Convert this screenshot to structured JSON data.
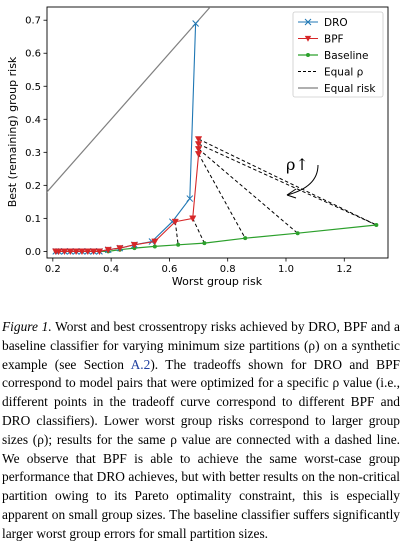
{
  "chart_data": {
    "type": "line",
    "xlabel": "Worst group risk",
    "ylabel": "Best (remaining) group risk",
    "xlim": [
      0.18,
      1.35
    ],
    "ylim": [
      -0.02,
      0.74
    ],
    "xticks": [
      "0.2",
      "0.4",
      "0.6",
      "0.8",
      "1.0",
      "1.2"
    ],
    "yticks": [
      "0.0",
      "0.1",
      "0.2",
      "0.3",
      "0.4",
      "0.5",
      "0.6",
      "0.7"
    ],
    "legend_position": "top-right",
    "legend": [
      "DRO",
      "BPF",
      "Baseline",
      "Equal ρ",
      "Equal risk"
    ],
    "annotation": "ρ↑",
    "colors": {
      "dro": "#1f77b4",
      "bpf": "#d62728",
      "baseline": "#2ca02c",
      "equal_rho": "#000000",
      "equal_risk": "#808080"
    },
    "series": [
      {
        "name": "DRO",
        "marker": "x",
        "points": [
          [
            0.21,
            0.0
          ],
          [
            0.22,
            0.0
          ],
          [
            0.24,
            0.0
          ],
          [
            0.26,
            0.0
          ],
          [
            0.28,
            0.0
          ],
          [
            0.3,
            0.0
          ],
          [
            0.32,
            0.0
          ],
          [
            0.34,
            0.0
          ],
          [
            0.36,
            0.0
          ],
          [
            0.39,
            0.005
          ],
          [
            0.43,
            0.01
          ],
          [
            0.48,
            0.02
          ],
          [
            0.54,
            0.03
          ],
          [
            0.61,
            0.09
          ],
          [
            0.67,
            0.16
          ],
          [
            0.69,
            0.69
          ]
        ]
      },
      {
        "name": "BPF",
        "marker": "triangle-down",
        "points": [
          [
            0.21,
            0.0
          ],
          [
            0.22,
            0.0
          ],
          [
            0.24,
            0.0
          ],
          [
            0.26,
            0.0
          ],
          [
            0.28,
            0.0
          ],
          [
            0.3,
            0.0
          ],
          [
            0.32,
            0.0
          ],
          [
            0.34,
            0.0
          ],
          [
            0.36,
            0.0
          ],
          [
            0.39,
            0.005
          ],
          [
            0.43,
            0.01
          ],
          [
            0.48,
            0.02
          ],
          [
            0.55,
            0.03
          ],
          [
            0.62,
            0.09
          ],
          [
            0.68,
            0.1
          ],
          [
            0.7,
            0.295
          ],
          [
            0.7,
            0.31
          ],
          [
            0.7,
            0.325
          ],
          [
            0.7,
            0.34
          ]
        ]
      },
      {
        "name": "Baseline",
        "marker": "dot",
        "points": [
          [
            0.21,
            0.0
          ],
          [
            0.22,
            0.0
          ],
          [
            0.24,
            0.0
          ],
          [
            0.26,
            0.0
          ],
          [
            0.28,
            0.0
          ],
          [
            0.3,
            0.0
          ],
          [
            0.32,
            0.0
          ],
          [
            0.34,
            0.0
          ],
          [
            0.36,
            0.0
          ],
          [
            0.39,
            0.0
          ],
          [
            0.43,
            0.005
          ],
          [
            0.48,
            0.01
          ],
          [
            0.55,
            0.015
          ],
          [
            0.63,
            0.02
          ],
          [
            0.72,
            0.025
          ],
          [
            0.86,
            0.04
          ],
          [
            1.04,
            0.055
          ],
          [
            1.31,
            0.08
          ]
        ]
      },
      {
        "name": "Equal ρ",
        "style": "dashed",
        "pairs": [
          [
            [
              0.62,
              0.09
            ],
            [
              0.63,
              0.02
            ]
          ],
          [
            [
              0.68,
              0.1
            ],
            [
              0.72,
              0.025
            ]
          ],
          [
            [
              0.7,
              0.295
            ],
            [
              0.86,
              0.04
            ]
          ],
          [
            [
              0.7,
              0.31
            ],
            [
              1.04,
              0.055
            ]
          ],
          [
            [
              0.7,
              0.325
            ],
            [
              1.31,
              0.08
            ]
          ],
          [
            [
              0.7,
              0.34
            ],
            [
              1.31,
              0.08
            ]
          ]
        ]
      },
      {
        "name": "Equal risk",
        "style": "solid",
        "points": [
          [
            0.0,
            0.0
          ],
          [
            0.74,
            0.74
          ]
        ]
      }
    ]
  },
  "caption": {
    "label": "Figure 1.",
    "text_1": " Worst and best crossentropy risks achieved by DRO, BPF and a baseline classifier for varying minimum size partitions (ρ) on a synthetic example (see Section ",
    "section_ref": "A.2",
    "text_2": "). The tradeoffs shown for DRO and BPF correspond to model pairs that were optimized for a specific ρ value (i.e., different points in the tradeoff curve correspond to different BPF and DRO classifiers). Lower worst group risks correspond to larger group sizes (ρ); results for the same ρ value are connected with a dashed line. We observe that BPF is able to achieve the same worst-case group performance that DRO achieves, but with better results on the non-critical partition owing to its Pareto optimality constraint, this is especially apparent on small group sizes. The baseline classifier suffers significantly larger worst group errors for small partition sizes."
  }
}
